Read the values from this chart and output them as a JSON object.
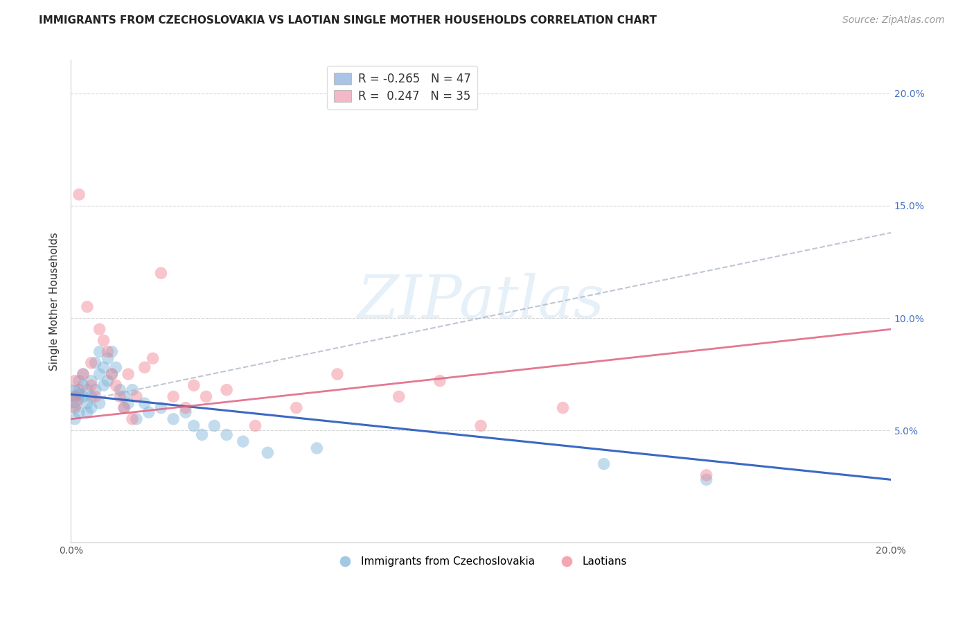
{
  "title": "IMMIGRANTS FROM CZECHOSLOVAKIA VS LAOTIAN SINGLE MOTHER HOUSEHOLDS CORRELATION CHART",
  "source": "Source: ZipAtlas.com",
  "ylabel": "Single Mother Households",
  "xlim": [
    0.0,
    0.2
  ],
  "ylim": [
    0.0,
    0.215
  ],
  "yticks": [
    0.0,
    0.05,
    0.1,
    0.15,
    0.2
  ],
  "xticks": [
    0.0,
    0.05,
    0.1,
    0.15,
    0.2
  ],
  "xtick_labels": [
    "0.0%",
    "",
    "",
    "",
    "20.0%"
  ],
  "right_ytick_labels": [
    "",
    "5.0%",
    "10.0%",
    "15.0%",
    "20.0%"
  ],
  "watermark": "ZIPatlas",
  "legend_line1": "R = -0.265   N = 47",
  "legend_line2": "R =  0.247   N = 35",
  "legend_color1": "#aac4e8",
  "legend_color2": "#f4b8c8",
  "series_blue_name": "Immigrants from Czechoslovakia",
  "series_blue_color": "#7ab3d9",
  "series_pink_name": "Laotians",
  "series_pink_color": "#f08090",
  "blue_line_color": "#3060c0",
  "pink_line_color": "#e06080",
  "gray_dashed_color": "#b0b8c8",
  "blue_trend": [
    0.066,
    0.028
  ],
  "pink_trend": [
    0.055,
    0.095
  ],
  "gray_dashed_trend": [
    0.062,
    0.138
  ],
  "background_color": "#ffffff",
  "grid_color": "#cccccc",
  "title_fontsize": 11,
  "axis_label_fontsize": 11,
  "tick_fontsize": 10,
  "source_fontsize": 10,
  "blue_x": [
    0.001,
    0.001,
    0.001,
    0.002,
    0.002,
    0.002,
    0.003,
    0.003,
    0.003,
    0.004,
    0.004,
    0.004,
    0.005,
    0.005,
    0.005,
    0.006,
    0.006,
    0.007,
    0.007,
    0.007,
    0.008,
    0.008,
    0.009,
    0.009,
    0.01,
    0.01,
    0.011,
    0.012,
    0.013,
    0.013,
    0.014,
    0.015,
    0.016,
    0.018,
    0.019,
    0.022,
    0.025,
    0.028,
    0.03,
    0.032,
    0.035,
    0.038,
    0.042,
    0.048,
    0.06,
    0.13,
    0.155
  ],
  "blue_y": [
    0.065,
    0.06,
    0.055,
    0.072,
    0.066,
    0.058,
    0.07,
    0.065,
    0.075,
    0.068,
    0.062,
    0.058,
    0.072,
    0.065,
    0.06,
    0.08,
    0.068,
    0.085,
    0.075,
    0.062,
    0.078,
    0.07,
    0.082,
    0.072,
    0.085,
    0.075,
    0.078,
    0.068,
    0.065,
    0.06,
    0.062,
    0.068,
    0.055,
    0.062,
    0.058,
    0.06,
    0.055,
    0.058,
    0.052,
    0.048,
    0.052,
    0.048,
    0.045,
    0.04,
    0.042,
    0.035,
    0.028
  ],
  "pink_x": [
    0.001,
    0.001,
    0.002,
    0.002,
    0.003,
    0.004,
    0.005,
    0.005,
    0.006,
    0.007,
    0.008,
    0.009,
    0.01,
    0.011,
    0.012,
    0.013,
    0.014,
    0.015,
    0.016,
    0.018,
    0.02,
    0.022,
    0.025,
    0.028,
    0.03,
    0.033,
    0.038,
    0.045,
    0.055,
    0.065,
    0.08,
    0.09,
    0.1,
    0.12,
    0.155
  ],
  "pink_y": [
    0.072,
    0.065,
    0.155,
    0.068,
    0.075,
    0.105,
    0.08,
    0.07,
    0.065,
    0.095,
    0.09,
    0.085,
    0.075,
    0.07,
    0.065,
    0.06,
    0.075,
    0.055,
    0.065,
    0.078,
    0.082,
    0.12,
    0.065,
    0.06,
    0.07,
    0.065,
    0.068,
    0.052,
    0.06,
    0.075,
    0.065,
    0.072,
    0.052,
    0.06,
    0.03
  ]
}
